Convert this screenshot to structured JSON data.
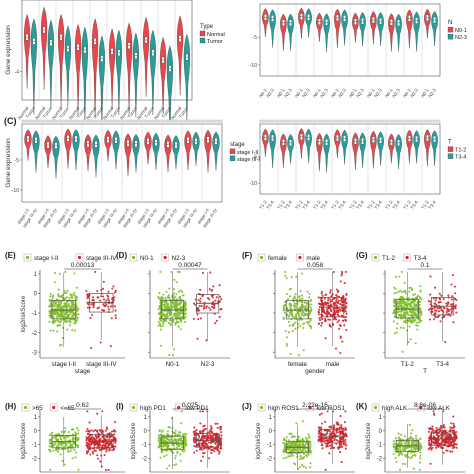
{
  "colors": {
    "normal": "#e8474c",
    "tumor": "#2a9d9a",
    "green": "#7fbf2a",
    "red": "#d0222a",
    "pbox": "#555555",
    "strip": "#e0e0e0",
    "grid": "#bdbdbd"
  },
  "text": {
    "panel_c_label": "(C)",
    "gene_expression": "Gene expression",
    "log_risk_score": "log2riskScore"
  },
  "chart_data": [
    {
      "id": "A",
      "type": "violin",
      "ylabel": "Gene expression",
      "yticks": [
        "-4"
      ],
      "legend_title": "Type",
      "legend": [
        "Normal",
        "Tumor"
      ],
      "categories": [
        "Normal",
        "Tumor",
        "Normal",
        "Tumor",
        "Normal",
        "Tumor",
        "Normal",
        "Tumor",
        "Normal",
        "Tumor",
        "Normal",
        "Tumor",
        "Normal",
        "Tumor",
        "Normal",
        "Tumor",
        "Normal",
        "Tumor",
        "Normal",
        "Tumor"
      ],
      "medians": [
        -1.6,
        -1.9,
        -1.1,
        -2.0,
        -1.6,
        -2.4,
        -2.3,
        -2.5,
        -1.9,
        -3.1,
        -2.6,
        -2.7,
        -2.2,
        -2.9,
        -1.8,
        -2.7,
        -3.2,
        -3.8,
        -1.7,
        -3.0
      ]
    },
    {
      "id": "B",
      "type": "violin",
      "yticks": [
        "-5",
        "-10"
      ],
      "legend_title": "N",
      "legend": [
        "N0-1",
        "N2-3"
      ],
      "categories": [
        "N0-1",
        "N2-3",
        "N0-1",
        "N2-3",
        "N0-1",
        "N2-3",
        "N0-1",
        "N2-3",
        "N0-1",
        "N2-3",
        "N0-1",
        "N2-3",
        "N0-1",
        "N2-3",
        "N0-1",
        "N2-3",
        "N0-1",
        "N2-3",
        "N0-1",
        "N2-3"
      ],
      "medians": [
        -1.4,
        -1.6,
        -2.4,
        -2.4,
        -1.3,
        -1.4,
        -2.2,
        -2.3,
        -1.5,
        -1.6,
        -2.2,
        -2.1,
        -1.9,
        -2.1,
        -2.3,
        -2.4,
        -1.6,
        -2.0,
        -1.5,
        -1.9
      ]
    },
    {
      "id": "C",
      "type": "violin",
      "ylabel": "Gene expression",
      "yticks": [
        "-5",
        "-10"
      ],
      "legend_title": "stage",
      "legend": [
        "stage I-II",
        "stage III-IV"
      ],
      "categories": [
        "stage I-II",
        "stage III-IV",
        "stage I-II",
        "stage III-IV",
        "stage I-II",
        "stage III-IV",
        "stage I-II",
        "stage III-IV",
        "stage I-II",
        "stage III-IV",
        "stage I-II",
        "stage III-IV",
        "stage I-II",
        "stage III-IV",
        "stage I-II",
        "stage III-IV",
        "stage I-II",
        "stage III-IV",
        "stage I-II",
        "stage III-IV"
      ],
      "medians": [
        -1.5,
        -1.7,
        -2.5,
        -2.6,
        -1.4,
        -1.5,
        -2.3,
        -2.4,
        -1.6,
        -1.7,
        -2.2,
        -2.3,
        -1.9,
        -2.1,
        -2.4,
        -2.5,
        -1.7,
        -1.9,
        -1.6,
        -1.9
      ]
    },
    {
      "id": "D",
      "type": "violin",
      "yticks": [
        "-5",
        "-10"
      ],
      "legend_title": "T",
      "legend": [
        "T1-2",
        "T3-4"
      ],
      "categories": [
        "T1-2",
        "T3-4",
        "T1-2",
        "T3-4",
        "T1-2",
        "T3-4",
        "T1-2",
        "T3-4",
        "T1-2",
        "T3-4",
        "T1-2",
        "T3-4",
        "T1-2",
        "T3-4",
        "T1-2",
        "T3-4",
        "T1-2",
        "T3-4",
        "T1-2",
        "T3-4"
      ],
      "medians": [
        -1.5,
        -1.6,
        -2.4,
        -2.5,
        -1.4,
        -1.5,
        -2.3,
        -2.4,
        -1.6,
        -1.7,
        -2.2,
        -2.2,
        -1.9,
        -2.0,
        -2.4,
        -2.5,
        -1.7,
        -1.8,
        -1.6,
        -1.8
      ]
    },
    {
      "id": "E",
      "label": "(E)",
      "type": "box_scatter",
      "ylabel": "log2riskScore",
      "xlabel": "stage",
      "ylim": [
        -3.3,
        1.2
      ],
      "yticks": [
        "1",
        "0",
        "-1",
        "-2",
        "-3"
      ],
      "legend": [
        "stage I-II",
        "stage III-IV"
      ],
      "categories": [
        "stage I-II",
        "stage III-IV"
      ],
      "pvalue": "0.00013",
      "medians": [
        -0.85,
        -0.45
      ],
      "q1": [
        -1.3,
        -0.95
      ],
      "q3": [
        -0.35,
        0.0
      ]
    },
    {
      "id": "F",
      "label": "(D)",
      "type": "box_scatter",
      "ylim": [
        -3.3,
        1.2
      ],
      "legend": [
        "N0-1",
        "N2-3"
      ],
      "categories": [
        "N0-1",
        "N2-3"
      ],
      "pvalue": "0.00047",
      "medians": [
        -0.85,
        -0.5
      ],
      "q1": [
        -1.3,
        -1.0
      ],
      "q3": [
        -0.35,
        -0.05
      ]
    },
    {
      "id": "G",
      "label": "(F)",
      "type": "box_scatter",
      "xlabel": "gender",
      "ylim": [
        -3.3,
        1.2
      ],
      "legend": [
        "female",
        "male"
      ],
      "categories": [
        "female",
        "male"
      ],
      "pvalue": "0.058",
      "medians": [
        -0.85,
        -0.7
      ],
      "q1": [
        -1.3,
        -1.2
      ],
      "q3": [
        -0.35,
        -0.2
      ]
    },
    {
      "id": "H",
      "label": "(G)",
      "type": "box_scatter",
      "xlabel": "T",
      "ylim": [
        -3.3,
        1.2
      ],
      "legend": [
        "T1-2",
        "T3-4"
      ],
      "categories": [
        "T1-2",
        "T3-4"
      ],
      "pvalue": "0.1",
      "medians": [
        -0.8,
        -0.65
      ],
      "q1": [
        -1.25,
        -1.1
      ],
      "q3": [
        -0.3,
        -0.2
      ]
    },
    {
      "id": "I",
      "label": "(H)",
      "type": "box_scatter",
      "ylabel": "log2riskScore",
      "ylim": [
        -3.0,
        1.5
      ],
      "yticks": [
        "1",
        "0",
        "-1",
        "-2"
      ],
      "legend": [
        ">65",
        "<=65"
      ],
      "categories": [
        ">65",
        "<=65"
      ],
      "pvalue": "0.62",
      "medians": [
        -0.8,
        -0.8
      ],
      "q1": [
        -1.25,
        -1.25
      ],
      "q3": [
        -0.35,
        -0.3
      ]
    },
    {
      "id": "J",
      "label": "(I)",
      "type": "box_scatter",
      "ylabel": "log2riskScore",
      "ylim": [
        -3.0,
        1.5
      ],
      "yticks": [
        "1",
        "0",
        "-1",
        "-2"
      ],
      "legend": [
        "high PD1",
        "low PD1"
      ],
      "categories": [
        "high PD1",
        "low PD1"
      ],
      "pvalue": "0.025",
      "medians": [
        -0.9,
        -0.7
      ],
      "q1": [
        -1.35,
        -1.2
      ],
      "q3": [
        -0.4,
        -0.2
      ]
    },
    {
      "id": "K",
      "label": "(J)",
      "type": "box_scatter",
      "ylabel": "log2riskScore",
      "ylim": [
        -3.0,
        1.5
      ],
      "yticks": [
        "1",
        "0",
        "-1",
        "-2"
      ],
      "legend": [
        "high ROS1",
        "low ROS1"
      ],
      "categories": [
        "high ROS1",
        "low ROS1"
      ],
      "pvalue": "2.22e-16",
      "medians": [
        -1.2,
        -0.4
      ],
      "q1": [
        -1.6,
        -0.9
      ],
      "q3": [
        -0.8,
        0.1
      ]
    },
    {
      "id": "L",
      "label": "(K)",
      "type": "box_scatter",
      "ylabel": "log2riskScore",
      "ylim": [
        -3.0,
        1.5
      ],
      "yticks": [
        "1",
        "0",
        "-1",
        "-2"
      ],
      "legend": [
        "high ALK",
        "low ALK"
      ],
      "categories": [
        "high ALK",
        "low ALK"
      ],
      "pvalue": "8.6e-06",
      "medians": [
        -1.1,
        -0.6
      ],
      "q1": [
        -1.5,
        -1.05
      ],
      "q3": [
        -0.7,
        -0.1
      ]
    }
  ]
}
